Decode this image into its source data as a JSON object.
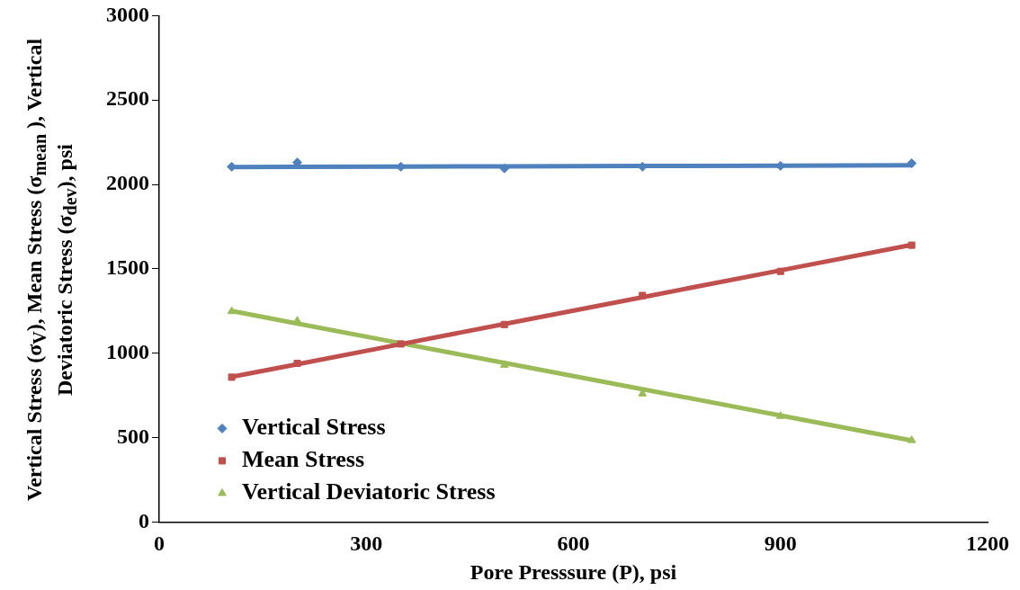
{
  "chart_data": {
    "type": "scatter",
    "xlabel": "Pore Presssure (P), psi",
    "ylabel": "Vertical Stress (σ$_{V}$), Mean Stress (σ$_{mean}$ ),  Vertical Deviatoric Stress (σ$_{dev}$), psi",
    "x": [
      105,
      200,
      350,
      500,
      700,
      900,
      1090
    ],
    "series": [
      {
        "name": "Vertical Stress",
        "color": "#4f81bd",
        "marker": "diamond",
        "values": [
          2105,
          2130,
          2105,
          2095,
          2105,
          2110,
          2125
        ]
      },
      {
        "name": "Mean Stress",
        "color": "#c0504d",
        "marker": "square",
        "values": [
          858,
          940,
          1055,
          1170,
          1342,
          1485,
          1640
        ]
      },
      {
        "name": "Vertical Deviatoric Stress",
        "color": "#9bbb59",
        "marker": "triangle",
        "values": [
          1248,
          1192,
          null,
          930,
          760,
          627,
          484
        ]
      },
      {
        "type": "line",
        "color": "#4f81bd",
        "marker": "none",
        "values": [
          2103,
          2104,
          2106,
          2107,
          2109,
          2111,
          2113
        ]
      },
      {
        "type": "line",
        "color": "#c0504d",
        "marker": "none",
        "values": [
          860,
          935,
          1054,
          1173,
          1332,
          1491,
          1642
        ]
      },
      {
        "type": "line",
        "color": "#9bbb59",
        "marker": "none",
        "values": [
          1250,
          1176,
          1059,
          943,
          787,
          631,
          483
        ]
      }
    ],
    "xlim": [
      0,
      1200
    ],
    "xticks": [
      0,
      300,
      600,
      900,
      1200
    ],
    "ylim": [
      0,
      3000
    ],
    "yticks": [
      0,
      500,
      1000,
      1500,
      2000,
      2500,
      3000
    ],
    "grid": false,
    "legend": "bottom left"
  }
}
